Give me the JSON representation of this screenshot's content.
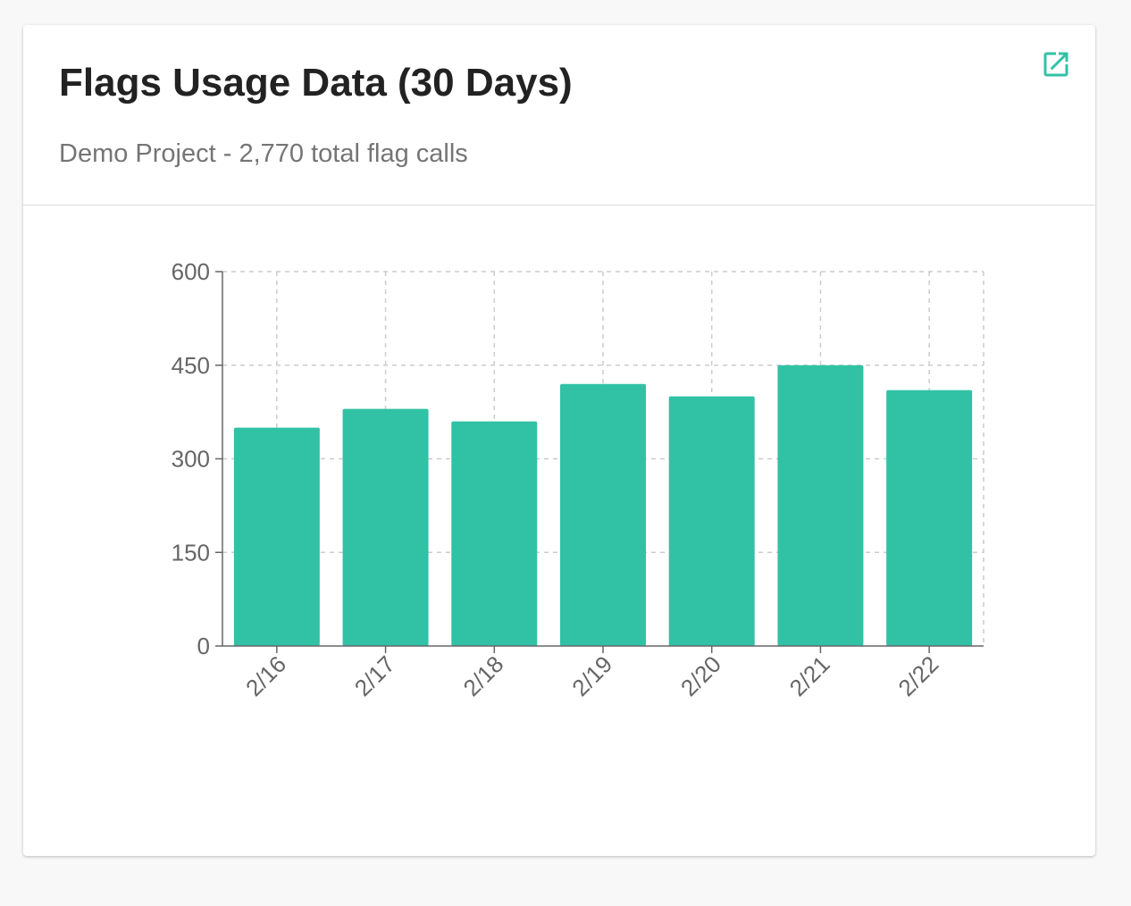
{
  "card": {
    "title": "Flags Usage Data (30 Days)",
    "subtitle": "Demo Project - 2,770 total flag calls",
    "open_icon": "open-in-new-icon"
  },
  "colors": {
    "accent": "#31c2a5",
    "grid": "#cccccc",
    "axis": "#666666"
  },
  "chart_data": {
    "type": "bar",
    "title": "",
    "xlabel": "",
    "ylabel": "",
    "categories": [
      "2/16",
      "2/17",
      "2/18",
      "2/19",
      "2/20",
      "2/21",
      "2/22"
    ],
    "values": [
      350,
      380,
      360,
      420,
      400,
      450,
      410
    ],
    "ylim": [
      0,
      600
    ],
    "yticks": [
      0,
      150,
      300,
      450,
      600
    ],
    "grid": true,
    "legend": "none"
  }
}
